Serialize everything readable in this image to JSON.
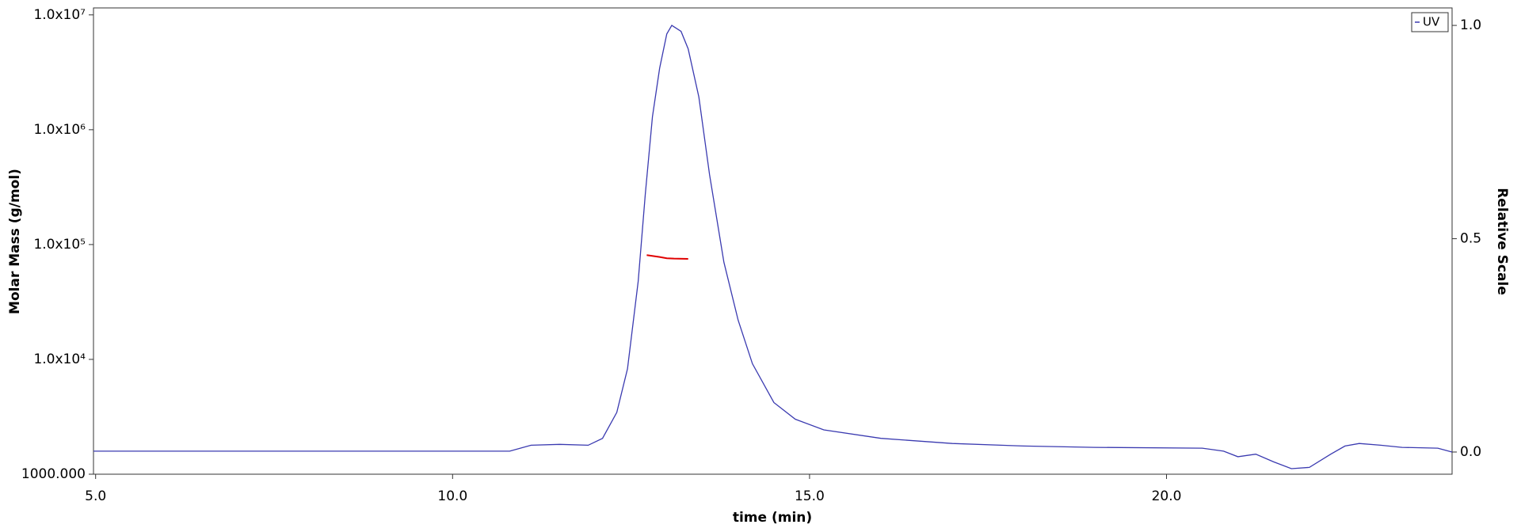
{
  "chart_data": {
    "type": "line",
    "xlabel": "time (min)",
    "ylabel": "Molar Mass (g/mol)",
    "y2label": "Relative Scale",
    "xlim": [
      4.97,
      24.0
    ],
    "xticks": [
      {
        "value": 5,
        "label": "5.0"
      },
      {
        "value": 10,
        "label": "10.0"
      },
      {
        "value": 15,
        "label": "15.0"
      },
      {
        "value": 20,
        "label": "20.0"
      }
    ],
    "ylim": [
      1000,
      11500000
    ],
    "ylog": true,
    "yticks": [
      {
        "value": 1000,
        "label": "1000.000"
      },
      {
        "value": 10000,
        "label": "1.0x10⁴"
      },
      {
        "value": 100000,
        "label": "1.0x10⁵"
      },
      {
        "value": 1000000,
        "label": "1.0x10⁶"
      },
      {
        "value": 10000000,
        "label": "1.0x10⁷"
      }
    ],
    "y2lim": [
      -0.052,
      1.041
    ],
    "y2ticks": [
      {
        "value": 0,
        "label": "0.0"
      },
      {
        "value": 0.5,
        "label": "0.5"
      },
      {
        "value": 1,
        "label": "1.0"
      }
    ],
    "grid": false,
    "legend": "upper right",
    "series": [
      {
        "name": "UV",
        "color": "#3a3ab0",
        "axis": "y2",
        "x": [
          4.97,
          10.8,
          11.1,
          11.5,
          11.9,
          12.1,
          12.3,
          12.45,
          12.6,
          12.7,
          12.8,
          12.9,
          13.0,
          13.07,
          13.2,
          13.3,
          13.45,
          13.6,
          13.8,
          14.0,
          14.2,
          14.5,
          14.8,
          15.2,
          16,
          17,
          18,
          19,
          20.5,
          20.8,
          21.0,
          21.25,
          21.5,
          21.75,
          22.0,
          22.3,
          22.5,
          22.7,
          23.0,
          23.3,
          23.8,
          24.0
        ],
        "values": [
          0.002,
          0.002,
          0.016,
          0.018,
          0.016,
          0.032,
          0.093,
          0.195,
          0.4,
          0.605,
          0.786,
          0.9,
          0.98,
          1.0,
          0.986,
          0.945,
          0.832,
          0.65,
          0.445,
          0.309,
          0.207,
          0.116,
          0.077,
          0.052,
          0.032,
          0.02,
          0.014,
          0.011,
          0.009,
          0.002,
          -0.011,
          -0.005,
          -0.023,
          -0.039,
          -0.036,
          -0.005,
          0.014,
          0.02,
          0.016,
          0.011,
          0.009,
          0.0
        ]
      },
      {
        "color": "#e00000",
        "x": [
          12.72,
          12.9,
          13.0,
          13.1,
          13.3
        ],
        "values": [
          81000,
          78000,
          76000,
          75500,
          75000
        ]
      }
    ]
  }
}
